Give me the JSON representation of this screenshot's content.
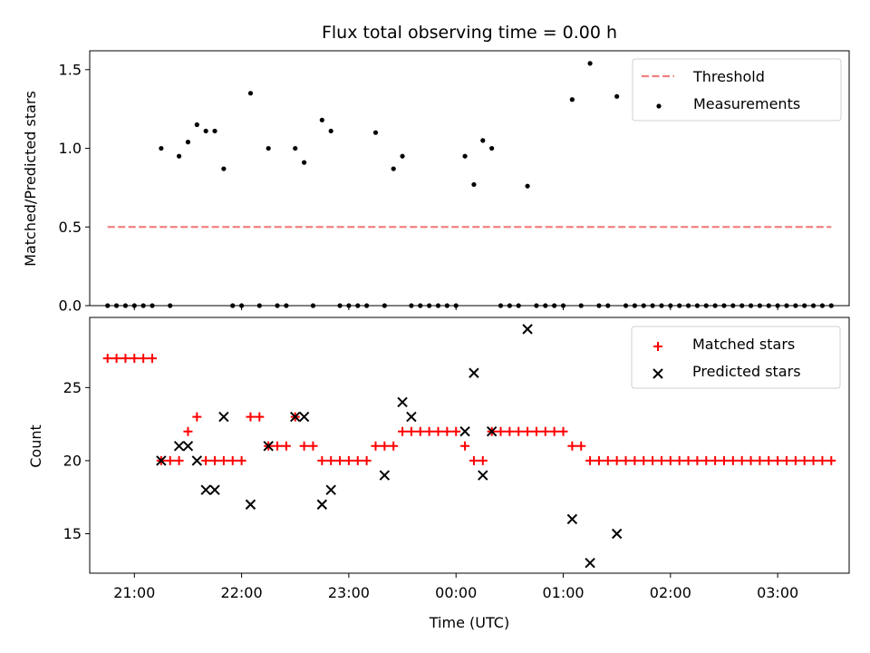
{
  "chart_data": [
    {
      "type": "scatter",
      "title": "Flux total observing time = 0.00 h",
      "xlabel": "",
      "ylabel": "Matched/Predicted stars",
      "ylim": [
        0,
        1.62
      ],
      "yticks": [
        "0.0",
        "0.5",
        "1.0",
        "1.5"
      ],
      "legend": {
        "placement": "top-right"
      },
      "series": [
        {
          "name": "Threshold",
          "kind": "dashed-line",
          "color": "#f08080",
          "x_range": [
            "20:45",
            "03:30"
          ],
          "y": 0.5
        },
        {
          "name": "Measurements",
          "kind": "points",
          "color": "#000000",
          "points": [
            [
              "20:45",
              0
            ],
            [
              "20:50",
              0
            ],
            [
              "20:55",
              0
            ],
            [
              "21:00",
              0
            ],
            [
              "21:05",
              0
            ],
            [
              "21:10",
              0
            ],
            [
              "21:15",
              1.0
            ],
            [
              "21:20",
              0
            ],
            [
              "21:25",
              0.95
            ],
            [
              "21:30",
              1.04
            ],
            [
              "21:35",
              1.15
            ],
            [
              "21:40",
              1.11
            ],
            [
              "21:45",
              1.11
            ],
            [
              "21:50",
              0.87
            ],
            [
              "21:55",
              0
            ],
            [
              "22:00",
              0
            ],
            [
              "22:05",
              1.35
            ],
            [
              "22:10",
              0
            ],
            [
              "22:15",
              1.0
            ],
            [
              "22:20",
              0
            ],
            [
              "22:25",
              0
            ],
            [
              "22:30",
              1.0
            ],
            [
              "22:35",
              0.91
            ],
            [
              "22:40",
              0
            ],
            [
              "22:45",
              1.18
            ],
            [
              "22:50",
              1.11
            ],
            [
              "22:55",
              0
            ],
            [
              "23:00",
              0
            ],
            [
              "23:05",
              0
            ],
            [
              "23:10",
              0
            ],
            [
              "23:15",
              1.1
            ],
            [
              "23:20",
              0
            ],
            [
              "23:25",
              0.87
            ],
            [
              "23:30",
              0.95
            ],
            [
              "23:35",
              0
            ],
            [
              "23:40",
              0
            ],
            [
              "23:45",
              0
            ],
            [
              "23:50",
              0
            ],
            [
              "23:55",
              0
            ],
            [
              "00:00",
              0
            ],
            [
              "00:05",
              0.95
            ],
            [
              "00:10",
              0.77
            ],
            [
              "00:15",
              1.05
            ],
            [
              "00:20",
              1.0
            ],
            [
              "00:25",
              0
            ],
            [
              "00:30",
              0
            ],
            [
              "00:35",
              0
            ],
            [
              "00:40",
              0.76
            ],
            [
              "00:45",
              0
            ],
            [
              "00:50",
              0
            ],
            [
              "00:55",
              0
            ],
            [
              "01:00",
              0
            ],
            [
              "01:05",
              1.31
            ],
            [
              "01:10",
              0
            ],
            [
              "01:15",
              1.54
            ],
            [
              "01:20",
              0
            ],
            [
              "01:25",
              0
            ],
            [
              "01:30",
              1.33
            ],
            [
              "01:35",
              0
            ],
            [
              "01:40",
              0
            ],
            [
              "01:45",
              0
            ],
            [
              "01:50",
              0
            ],
            [
              "01:55",
              0
            ],
            [
              "02:00",
              0
            ],
            [
              "02:05",
              0
            ],
            [
              "02:10",
              0
            ],
            [
              "02:15",
              0
            ],
            [
              "02:20",
              0
            ],
            [
              "02:25",
              0
            ],
            [
              "02:30",
              0
            ],
            [
              "02:35",
              0
            ],
            [
              "02:40",
              0
            ],
            [
              "02:45",
              0
            ],
            [
              "02:50",
              0
            ],
            [
              "02:55",
              0
            ],
            [
              "03:00",
              0
            ],
            [
              "03:05",
              0
            ],
            [
              "03:10",
              0
            ],
            [
              "03:15",
              0
            ],
            [
              "03:20",
              0
            ],
            [
              "03:25",
              0
            ],
            [
              "03:30",
              0
            ]
          ]
        }
      ]
    },
    {
      "type": "scatter",
      "title": "",
      "xlabel": "Time (UTC)",
      "ylabel": "Count",
      "ylim": [
        12.3,
        29.8
      ],
      "yticks": [
        "15",
        "20",
        "25"
      ],
      "xticks": [
        "21:00",
        "22:00",
        "23:00",
        "00:00",
        "01:00",
        "02:00",
        "03:00"
      ],
      "legend": {
        "placement": "top-right"
      },
      "series": [
        {
          "name": "Matched stars",
          "marker": "plus",
          "color": "#ff0000",
          "points": [
            [
              "20:45",
              27
            ],
            [
              "20:50",
              27
            ],
            [
              "20:55",
              27
            ],
            [
              "21:00",
              27
            ],
            [
              "21:05",
              27
            ],
            [
              "21:10",
              27
            ],
            [
              "21:15",
              20
            ],
            [
              "21:20",
              20
            ],
            [
              "21:25",
              20
            ],
            [
              "21:30",
              22
            ],
            [
              "21:35",
              23
            ],
            [
              "21:40",
              20
            ],
            [
              "21:45",
              20
            ],
            [
              "21:50",
              20
            ],
            [
              "21:55",
              20
            ],
            [
              "22:00",
              20
            ],
            [
              "22:05",
              23
            ],
            [
              "22:10",
              23
            ],
            [
              "22:15",
              21
            ],
            [
              "22:20",
              21
            ],
            [
              "22:25",
              21
            ],
            [
              "22:30",
              23
            ],
            [
              "22:35",
              21
            ],
            [
              "22:40",
              21
            ],
            [
              "22:45",
              20
            ],
            [
              "22:50",
              20
            ],
            [
              "22:55",
              20
            ],
            [
              "23:00",
              20
            ],
            [
              "23:05",
              20
            ],
            [
              "23:10",
              20
            ],
            [
              "23:15",
              21
            ],
            [
              "23:20",
              21
            ],
            [
              "23:25",
              21
            ],
            [
              "23:30",
              22
            ],
            [
              "23:35",
              22
            ],
            [
              "23:40",
              22
            ],
            [
              "23:45",
              22
            ],
            [
              "23:50",
              22
            ],
            [
              "23:55",
              22
            ],
            [
              "00:00",
              22
            ],
            [
              "00:05",
              21
            ],
            [
              "00:10",
              20
            ],
            [
              "00:15",
              20
            ],
            [
              "00:20",
              22
            ],
            [
              "00:25",
              22
            ],
            [
              "00:30",
              22
            ],
            [
              "00:35",
              22
            ],
            [
              "00:40",
              22
            ],
            [
              "00:45",
              22
            ],
            [
              "00:50",
              22
            ],
            [
              "00:55",
              22
            ],
            [
              "01:00",
              22
            ],
            [
              "01:05",
              21
            ],
            [
              "01:10",
              21
            ],
            [
              "01:15",
              20
            ],
            [
              "01:20",
              20
            ],
            [
              "01:25",
              20
            ],
            [
              "01:30",
              20
            ],
            [
              "01:35",
              20
            ],
            [
              "01:40",
              20
            ],
            [
              "01:45",
              20
            ],
            [
              "01:50",
              20
            ],
            [
              "01:55",
              20
            ],
            [
              "02:00",
              20
            ],
            [
              "02:05",
              20
            ],
            [
              "02:10",
              20
            ],
            [
              "02:15",
              20
            ],
            [
              "02:20",
              20
            ],
            [
              "02:25",
              20
            ],
            [
              "02:30",
              20
            ],
            [
              "02:35",
              20
            ],
            [
              "02:40",
              20
            ],
            [
              "02:45",
              20
            ],
            [
              "02:50",
              20
            ],
            [
              "02:55",
              20
            ],
            [
              "03:00",
              20
            ],
            [
              "03:05",
              20
            ],
            [
              "03:10",
              20
            ],
            [
              "03:15",
              20
            ],
            [
              "03:20",
              20
            ],
            [
              "03:25",
              20
            ],
            [
              "03:30",
              20
            ]
          ]
        },
        {
          "name": "Predicted stars",
          "marker": "x",
          "color": "#000000",
          "points": [
            [
              "21:15",
              20
            ],
            [
              "21:25",
              21
            ],
            [
              "21:30",
              21
            ],
            [
              "21:35",
              20
            ],
            [
              "21:40",
              18
            ],
            [
              "21:45",
              18
            ],
            [
              "21:50",
              23
            ],
            [
              "22:05",
              17
            ],
            [
              "22:15",
              21
            ],
            [
              "22:30",
              23
            ],
            [
              "22:35",
              23
            ],
            [
              "22:45",
              17
            ],
            [
              "22:50",
              18
            ],
            [
              "23:20",
              19
            ],
            [
              "23:30",
              24
            ],
            [
              "23:35",
              23
            ],
            [
              "00:05",
              22
            ],
            [
              "00:10",
              26
            ],
            [
              "00:15",
              19
            ],
            [
              "00:20",
              22
            ],
            [
              "00:40",
              29
            ],
            [
              "01:05",
              16
            ],
            [
              "01:15",
              13
            ],
            [
              "01:30",
              15
            ]
          ]
        }
      ]
    }
  ]
}
